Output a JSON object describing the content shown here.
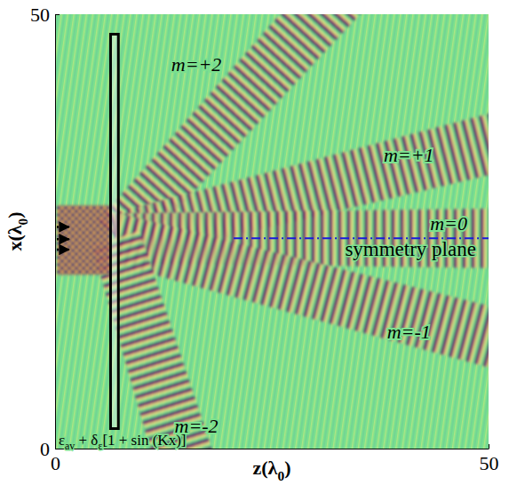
{
  "chart_data": {
    "type": "field_plot",
    "xlabel": {
      "parts": [
        "z(λ",
        "0",
        ")"
      ],
      "subscript": [
        false,
        true,
        false
      ]
    },
    "ylabel": {
      "parts": [
        "x(λ",
        "0",
        ")"
      ],
      "subscript": [
        false,
        true,
        false
      ]
    },
    "xlim": [
      0,
      50
    ],
    "ylim": [
      0,
      50
    ],
    "xticks": [
      0,
      50
    ],
    "yticks": [
      0,
      50
    ],
    "grating": {
      "z": [
        6.4,
        7.3
      ],
      "x": [
        2.3,
        47.7
      ],
      "label": {
        "parts": [
          "ε",
          "av",
          " + δ",
          "ε",
          "[1 + sin (Kx)]"
        ],
        "subscript": [
          false,
          true,
          false,
          true,
          false
        ],
        "at": [
          0.4,
          0.4
        ]
      }
    },
    "incident": {
      "z": [
        0.2,
        6.4
      ],
      "x": [
        20,
        28
      ],
      "arrows": {
        "x": [
          22.9,
          24.1,
          25.5
        ],
        "z": [
          0.2,
          1.6
        ]
      }
    },
    "beams": [
      {
        "name": "m=+2",
        "from": [
          7,
          24.2
        ],
        "to": [
          30.5,
          50
        ],
        "label_at": [
          16.3,
          44
        ]
      },
      {
        "name": "m=+1",
        "from": [
          7,
          24.2
        ],
        "to": [
          50,
          35
        ],
        "label_at": [
          40.8,
          33.5
        ]
      },
      {
        "name": "m=0",
        "from": [
          7,
          24.2
        ],
        "to": [
          50,
          24.2
        ],
        "label_at": [
          45.4,
          25.7
        ]
      },
      {
        "name": "m=-1",
        "from": [
          7,
          24.2
        ],
        "to": [
          50,
          12.9
        ],
        "label_at": [
          40.8,
          13.2
        ]
      },
      {
        "name": "m=-2",
        "from": [
          7,
          24.2
        ],
        "to": [
          14.5,
          0
        ],
        "label_at": [
          16.3,
          2.4
        ]
      }
    ],
    "symmetry_plane": {
      "label": "symmetry plane",
      "x": 24.2,
      "z": [
        20.6,
        50
      ],
      "label_at": [
        41,
        22.2
      ],
      "color": "#1a1adc",
      "line_style": "dashdot"
    }
  }
}
